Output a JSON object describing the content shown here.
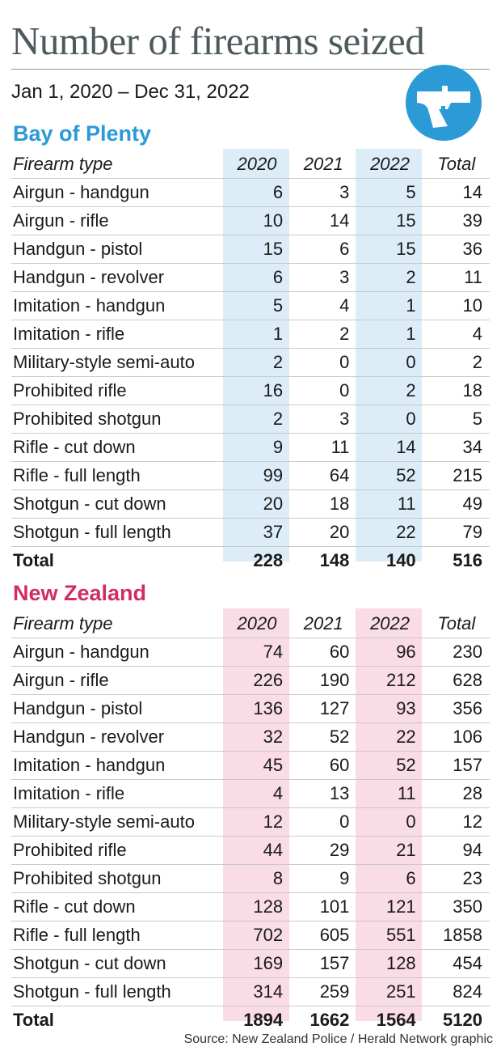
{
  "title": "Number of firearms seized",
  "subtitle": "Jan 1, 2020 – Dec 31, 2022",
  "icon": "handgun-icon",
  "colors": {
    "bop_accent": "#2b9ad6",
    "bop_highlight": "#dcedf7",
    "nz_accent": "#d12c68",
    "nz_highlight": "#f9dce5",
    "title": "#4d5a5c"
  },
  "chart_data": [
    {
      "type": "table",
      "title": "Bay of Plenty",
      "columns": [
        "Firearm type",
        "2020",
        "2021",
        "2022",
        "Total"
      ],
      "rows": [
        [
          "Airgun - handgun",
          "6",
          "3",
          "5",
          "14"
        ],
        [
          "Airgun - rifle",
          "10",
          "14",
          "15",
          "39"
        ],
        [
          "Handgun - pistol",
          "15",
          "6",
          "15",
          "36"
        ],
        [
          "Handgun - revolver",
          "6",
          "3",
          "2",
          "11"
        ],
        [
          "Imitation - handgun",
          "5",
          "4",
          "1",
          "10"
        ],
        [
          "Imitation - rifle",
          "1",
          "2",
          "1",
          "4"
        ],
        [
          "Military-style semi-auto",
          "2",
          "0",
          "0",
          "2"
        ],
        [
          "Prohibited rifle",
          "16",
          "0",
          "2",
          "18"
        ],
        [
          "Prohibited shotgun",
          "2",
          "3",
          "0",
          "5"
        ],
        [
          "Rifle - cut down",
          "9",
          "11",
          "14",
          "34"
        ],
        [
          "Rifle - full length",
          "99",
          "64",
          "52",
          "215"
        ],
        [
          "Shotgun - cut down",
          "20",
          "18",
          "11",
          "49"
        ],
        [
          "Shotgun - full length",
          "37",
          "20",
          "22",
          "79"
        ]
      ],
      "total": [
        "Total",
        "228",
        "148",
        "140",
        "516"
      ]
    },
    {
      "type": "table",
      "title": "New Zealand",
      "columns": [
        "Firearm type",
        "2020",
        "2021",
        "2022",
        "Total"
      ],
      "rows": [
        [
          "Airgun - handgun",
          "74",
          "60",
          "96",
          "230"
        ],
        [
          "Airgun - rifle",
          "226",
          "190",
          "212",
          "628"
        ],
        [
          "Handgun - pistol",
          "136",
          "127",
          "93",
          "356"
        ],
        [
          "Handgun - revolver",
          "32",
          "52",
          "22",
          "106"
        ],
        [
          "Imitation - handgun",
          "45",
          "60",
          "52",
          "157"
        ],
        [
          "Imitation - rifle",
          "4",
          "13",
          "11",
          "28"
        ],
        [
          "Military-style semi-auto",
          "12",
          "0",
          "0",
          "12"
        ],
        [
          "Prohibited rifle",
          "44",
          "29",
          "21",
          "94"
        ],
        [
          "Prohibited shotgun",
          "8",
          "9",
          "6",
          "23"
        ],
        [
          "Rifle - cut down",
          "128",
          "101",
          "121",
          "350"
        ],
        [
          "Rifle - full length",
          "702",
          "605",
          "551",
          "1858"
        ],
        [
          "Shotgun - cut down",
          "169",
          "157",
          "128",
          "454"
        ],
        [
          "Shotgun - full length",
          "314",
          "259",
          "251",
          "824"
        ]
      ],
      "total": [
        "Total",
        "1894",
        "1662",
        "1564",
        "5120"
      ]
    }
  ],
  "source": "Source: New Zealand Police / Herald Network graphic"
}
